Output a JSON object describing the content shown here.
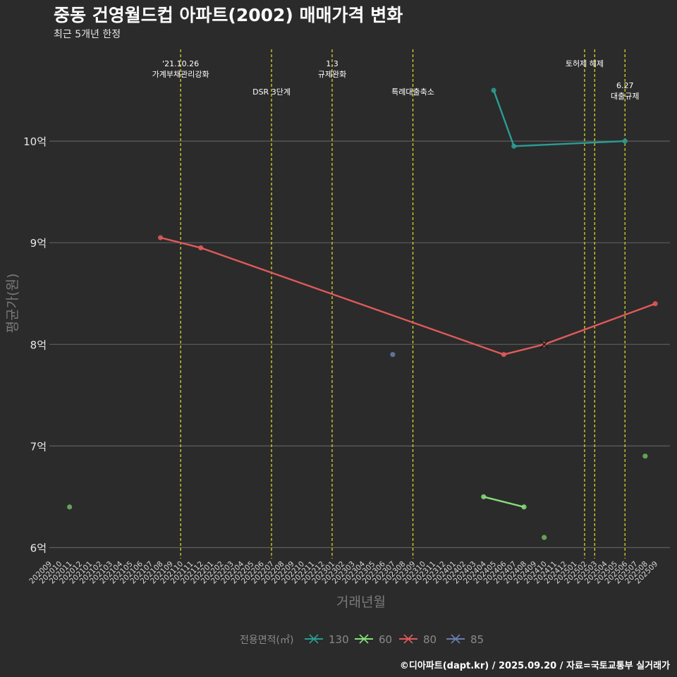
{
  "header": {
    "title": "중동 건영월드컵 아파트(2002) 매매가격 변화",
    "subtitle": "최근 5개년 한정"
  },
  "caption": "©디아파트(dapt.kr) / 2025.09.20 / 자료=국토교통부 실거래가",
  "colors": {
    "background": "#2b2b2b",
    "grid": "#5e5e5e",
    "event_line": "#d6d62a",
    "s130": "#2a9d94",
    "s60": "#86e07a",
    "s80": "#e05a5a",
    "s85": "#6a7fae",
    "solo_green": "#6cae5c"
  },
  "chart_data": {
    "type": "line",
    "title": "중동 건영월드컵 아파트(2002) 매매가격 변화",
    "xlabel": "거래년월",
    "ylabel": "평균가(원)",
    "y_ticks": [
      {
        "value": 6,
        "label": "6억"
      },
      {
        "value": 7,
        "label": "7억"
      },
      {
        "value": 8,
        "label": "8억"
      },
      {
        "value": 9,
        "label": "9억"
      },
      {
        "value": 10,
        "label": "10억"
      }
    ],
    "ylim": [
      5.83,
      10.98
    ],
    "x_categories": [
      "202009",
      "202010",
      "202011",
      "202012",
      "202101",
      "202102",
      "202103",
      "202104",
      "202105",
      "202106",
      "202107",
      "202108",
      "202109",
      "202110",
      "202111",
      "202112",
      "202201",
      "202202",
      "202203",
      "202204",
      "202205",
      "202206",
      "202207",
      "202208",
      "202209",
      "202210",
      "202211",
      "202212",
      "202301",
      "202302",
      "202303",
      "202304",
      "202305",
      "202306",
      "202307",
      "202308",
      "202309",
      "202310",
      "202311",
      "202312",
      "202401",
      "202402",
      "202403",
      "202404",
      "202405",
      "202406",
      "202407",
      "202408",
      "202409",
      "202410",
      "202411",
      "202412",
      "202501",
      "202502",
      "202503",
      "202504",
      "202505",
      "202506",
      "202507",
      "202508",
      "202509"
    ],
    "x_tick_labels": [
      "202009",
      "202010",
      "202011",
      "202012",
      "202101",
      "202102",
      "202103",
      "202104",
      "202105",
      "202106",
      "202107",
      "202108",
      "202109",
      "202110",
      "202111",
      "202112",
      "202201",
      "202202",
      "202203",
      "202204",
      "202205",
      "202206",
      "202207",
      "202208",
      "202209",
      "202210",
      "202211",
      "202212",
      "202301",
      "202302",
      "202303",
      "202304",
      "202305",
      "202306",
      "202307",
      "202308",
      "202309",
      "202310",
      "202311",
      "202312",
      "202401",
      "202402",
      "202403",
      "202404",
      "202405",
      "202406",
      "202407",
      "202408",
      "202409",
      "202410",
      "202411",
      "202412",
      "202501",
      "202502",
      "202503",
      "202504",
      "202505",
      "202506",
      "202507",
      "202508",
      "202509"
    ],
    "series": [
      {
        "name": "130",
        "color": "#2a9d94",
        "points": [
          {
            "x": "202405",
            "y": 10.5
          },
          {
            "x": "202407",
            "y": 9.95
          },
          {
            "x": "202506",
            "y": 10.0
          }
        ]
      },
      {
        "name": "60",
        "color": "#86e07a",
        "points": [
          {
            "x": "202404",
            "y": 6.5
          },
          {
            "x": "202408",
            "y": 6.4
          }
        ]
      },
      {
        "name": "80",
        "color": "#e05a5a",
        "points": [
          {
            "x": "202108",
            "y": 9.05
          },
          {
            "x": "202112",
            "y": 8.95
          },
          {
            "x": "202406",
            "y": 7.9
          },
          {
            "x": "202410",
            "y": 8.0
          },
          {
            "x": "202509",
            "y": 8.4
          }
        ]
      },
      {
        "name": "85",
        "color": "#6a7fae",
        "points": [
          {
            "x": "202307",
            "y": 7.9
          }
        ]
      }
    ],
    "extra_points": [
      {
        "x": "202011",
        "y": 6.4,
        "color": "#6cae5c"
      },
      {
        "x": "202410",
        "y": 6.1,
        "color": "#6cae5c"
      },
      {
        "x": "202508",
        "y": 6.9,
        "color": "#6cae5c"
      }
    ],
    "cross_markers": [
      {
        "x": "202410",
        "y": 8.0,
        "color": "#e05a5a"
      }
    ],
    "events": [
      {
        "x": "202110",
        "lines": [
          "'21.10.26",
          "가계부채관리강화"
        ],
        "row": 0
      },
      {
        "x": "202207",
        "lines": [
          "DSR 3단계"
        ],
        "row": 1
      },
      {
        "x": "202301",
        "lines": [
          "1.3",
          "규제완화"
        ],
        "row": 0
      },
      {
        "x": "202309",
        "lines": [
          "특례대출축소"
        ],
        "row": 1
      },
      {
        "x": "202502",
        "lines": [
          "토허제 해제"
        ],
        "row": 0
      },
      {
        "x": "202503",
        "lines": [],
        "row": 0
      },
      {
        "x": "202506",
        "lines": [
          "6.27",
          "대출규제"
        ],
        "row": 2
      }
    ],
    "legend": {
      "title": "전용면적(㎡)",
      "position": "bottom",
      "items": [
        {
          "label": "130",
          "color": "#2a9d94"
        },
        {
          "label": "60",
          "color": "#86e07a"
        },
        {
          "label": "80",
          "color": "#e05a5a"
        },
        {
          "label": "85",
          "color": "#6a7fae"
        }
      ]
    }
  }
}
